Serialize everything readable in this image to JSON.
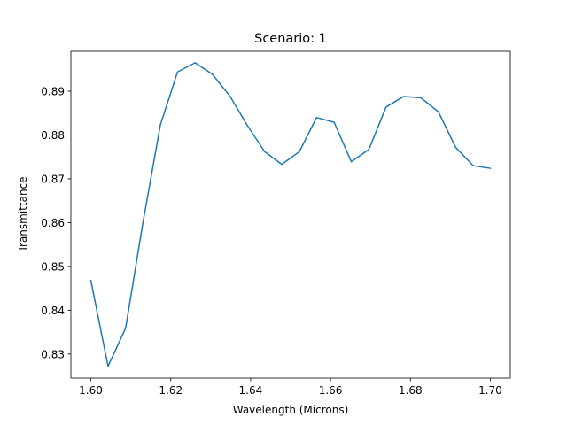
{
  "chart_data": {
    "type": "line",
    "title": "Scenario: 1",
    "xlabel": "Wavelength (Microns)",
    "ylabel": "Transmittance",
    "xlim": [
      1.595,
      1.705
    ],
    "ylim": [
      0.8245,
      0.8991
    ],
    "xticks": [
      1.6,
      1.62,
      1.64,
      1.66,
      1.68,
      1.7
    ],
    "xtick_labels": [
      "1.60",
      "1.62",
      "1.64",
      "1.66",
      "1.68",
      "1.70"
    ],
    "yticks": [
      0.83,
      0.84,
      0.85,
      0.86,
      0.87,
      0.88,
      0.89
    ],
    "ytick_labels": [
      "0.83",
      "0.84",
      "0.85",
      "0.86",
      "0.87",
      "0.88",
      "0.89"
    ],
    "grid": false,
    "series": [
      {
        "color": "#1f77b4",
        "x": [
          1.6,
          1.6043,
          1.6087,
          1.613,
          1.6174,
          1.6217,
          1.6261,
          1.6304,
          1.6348,
          1.6391,
          1.6435,
          1.6478,
          1.6522,
          1.6565,
          1.6609,
          1.6652,
          1.6696,
          1.6739,
          1.6783,
          1.6826,
          1.687,
          1.6913,
          1.6957,
          1.7
        ],
        "y": [
          0.8468,
          0.8272,
          0.8359,
          0.8598,
          0.8823,
          0.8944,
          0.8965,
          0.8939,
          0.8889,
          0.8823,
          0.8762,
          0.8733,
          0.8762,
          0.884,
          0.8829,
          0.8739,
          0.8767,
          0.8864,
          0.8888,
          0.8885,
          0.8853,
          0.8772,
          0.873,
          0.8724
        ]
      }
    ]
  }
}
